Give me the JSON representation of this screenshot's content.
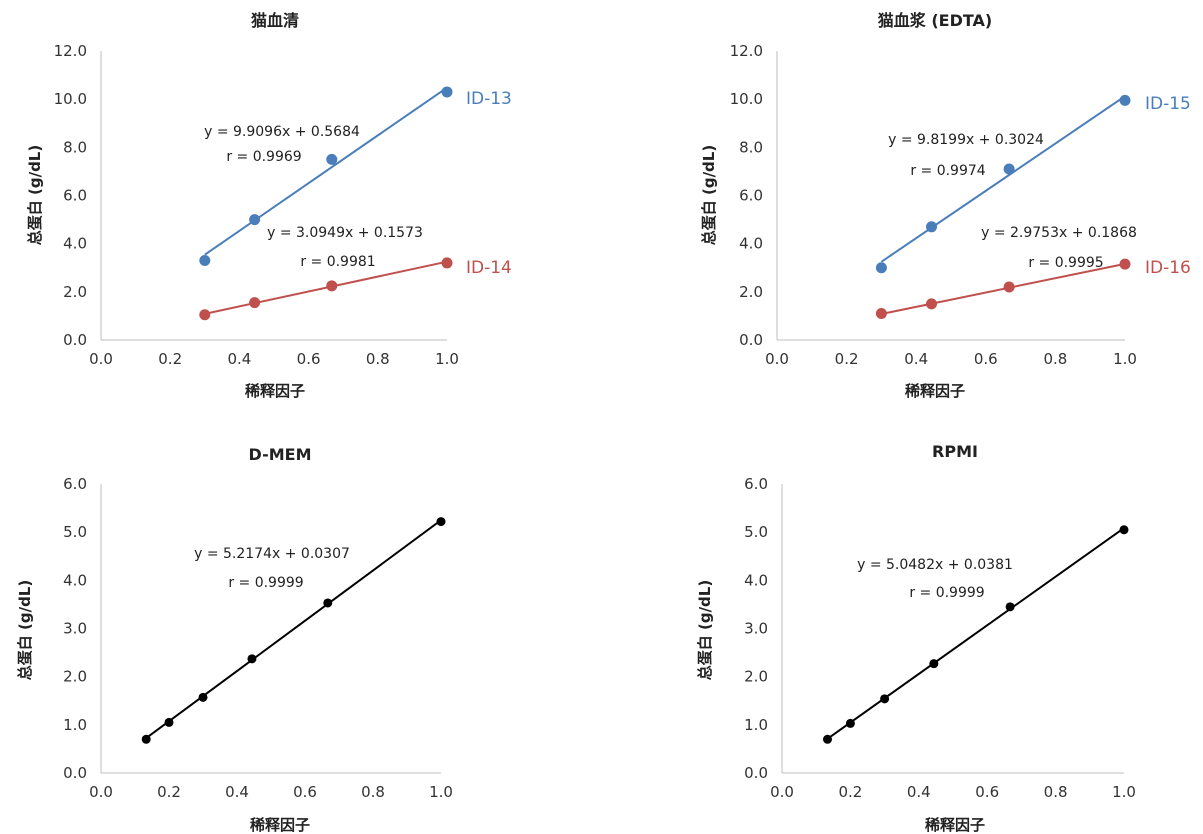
{
  "chart_data": [
    {
      "type": "scatter",
      "title": "猫血清",
      "xlabel": "稀释因子",
      "ylabel": "总蛋白 (g/dL)",
      "xlim": [
        0,
        1.0
      ],
      "ylim": [
        0,
        12.0
      ],
      "xticks": [
        "0.0",
        "0.2",
        "0.4",
        "0.6",
        "0.8",
        "1.0"
      ],
      "yticks": [
        "0.0",
        "2.0",
        "4.0",
        "6.0",
        "8.0",
        "10.0",
        "12.0"
      ],
      "grid": false,
      "series": [
        {
          "name": "ID-13",
          "color": "#4a7ebb",
          "x": [
            0.3,
            0.444,
            0.667,
            1.0
          ],
          "y": [
            3.3,
            5.0,
            7.5,
            10.3
          ],
          "fit": {
            "slope": 9.9096,
            "intercept": 0.5684
          },
          "equation": "y = 9.9096x + 0.5684",
          "r": "r = 0.9969"
        },
        {
          "name": "ID-14",
          "color": "#c0504d",
          "x": [
            0.3,
            0.444,
            0.667,
            1.0
          ],
          "y": [
            1.05,
            1.55,
            2.25,
            3.2
          ],
          "fit": {
            "slope": 3.0949,
            "intercept": 0.1573
          },
          "equation": "y = 3.0949x + 0.1573",
          "r": "r = 0.9981"
        }
      ]
    },
    {
      "type": "scatter",
      "title": "猫血浆 (EDTA)",
      "xlabel": "稀释因子",
      "ylabel": "总蛋白 (g/dL)",
      "xlim": [
        0,
        1.0
      ],
      "ylim": [
        0,
        12.0
      ],
      "xticks": [
        "0.0",
        "0.2",
        "0.4",
        "0.6",
        "0.8",
        "1.0"
      ],
      "yticks": [
        "0.0",
        "2.0",
        "4.0",
        "6.0",
        "8.0",
        "10.0",
        "12.0"
      ],
      "grid": false,
      "series": [
        {
          "name": "ID-15",
          "color": "#4a7ebb",
          "x": [
            0.3,
            0.444,
            0.667,
            1.0
          ],
          "y": [
            3.0,
            4.7,
            7.1,
            9.95
          ],
          "fit": {
            "slope": 9.8199,
            "intercept": 0.3024
          },
          "equation": "y = 9.8199x + 0.3024",
          "r": "r = 0.9974"
        },
        {
          "name": "ID-16",
          "color": "#c0504d",
          "x": [
            0.3,
            0.444,
            0.667,
            1.0
          ],
          "y": [
            1.1,
            1.5,
            2.2,
            3.15
          ],
          "fit": {
            "slope": 2.9753,
            "intercept": 0.1868
          },
          "equation": "y = 2.9753x + 0.1868",
          "r": "r = 0.9995"
        }
      ]
    },
    {
      "type": "scatter",
      "title": "D-MEM",
      "xlabel": "稀释因子",
      "ylabel": "总蛋白 (g/dL)",
      "xlim": [
        0,
        1.0
      ],
      "ylim": [
        0,
        6.0
      ],
      "xticks": [
        "0.0",
        "0.2",
        "0.4",
        "0.6",
        "0.8",
        "1.0"
      ],
      "yticks": [
        "0.0",
        "1.0",
        "2.0",
        "3.0",
        "4.0",
        "5.0",
        "6.0"
      ],
      "grid": false,
      "series": [
        {
          "color": "#000000",
          "x": [
            0.133,
            0.2,
            0.3,
            0.444,
            0.667,
            1.0
          ],
          "y": [
            0.7,
            1.05,
            1.57,
            2.37,
            3.53,
            5.22
          ],
          "fit": {
            "slope": 5.2174,
            "intercept": 0.0307
          },
          "equation": "y = 5.2174x + 0.0307",
          "r": "r = 0.9999"
        }
      ]
    },
    {
      "type": "scatter",
      "title": "RPMI",
      "xlabel": "稀释因子",
      "ylabel": "总蛋白 (g/dL)",
      "xlim": [
        0,
        1.0
      ],
      "ylim": [
        0,
        6.0
      ],
      "xticks": [
        "0.0",
        "0.2",
        "0.4",
        "0.6",
        "0.8",
        "1.0"
      ],
      "yticks": [
        "0.0",
        "1.0",
        "2.0",
        "3.0",
        "4.0",
        "5.0",
        "6.0"
      ],
      "grid": false,
      "series": [
        {
          "color": "#000000",
          "x": [
            0.133,
            0.2,
            0.3,
            0.444,
            0.667,
            1.0
          ],
          "y": [
            0.7,
            1.03,
            1.54,
            2.27,
            3.45,
            5.05
          ],
          "fit": {
            "slope": 5.0482,
            "intercept": 0.0381
          },
          "equation": "y = 5.0482x + 0.0381",
          "r": "r = 0.9999"
        }
      ]
    }
  ]
}
